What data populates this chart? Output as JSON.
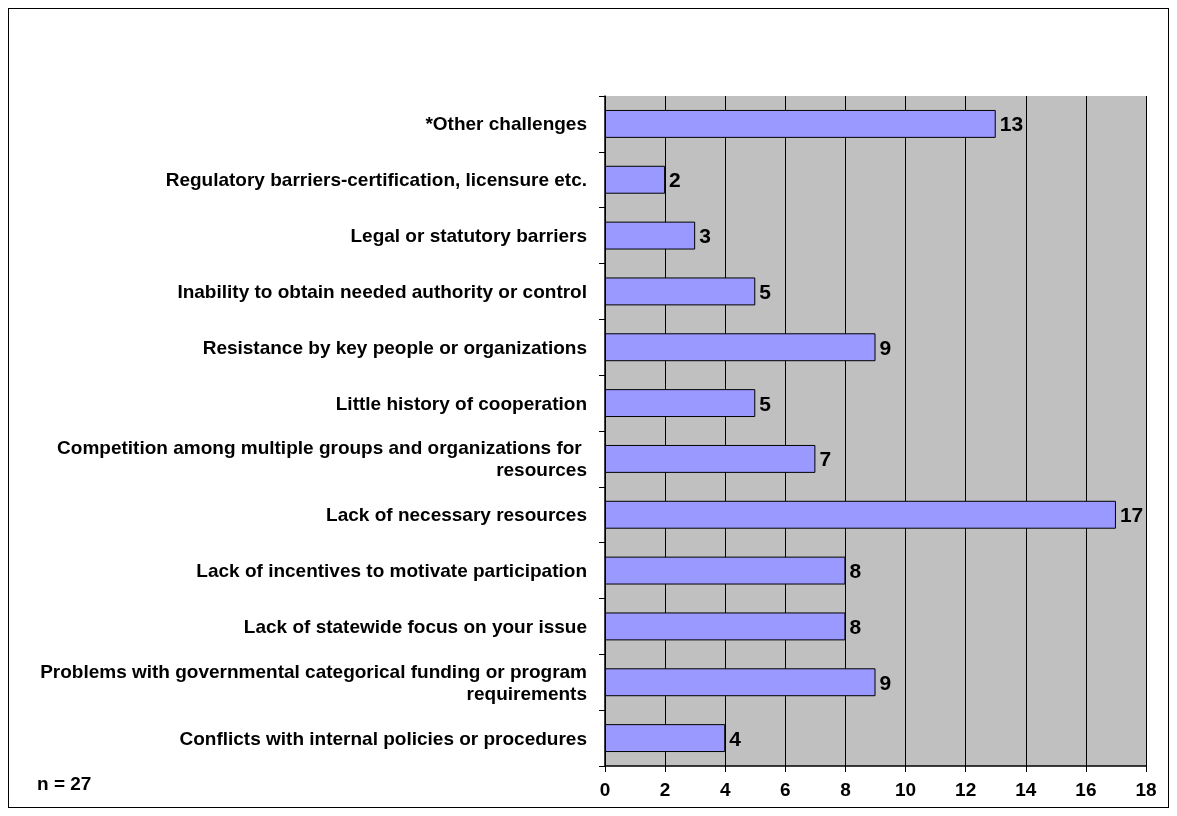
{
  "chart_data": {
    "type": "bar",
    "orientation": "horizontal",
    "categories": [
      "*Other challenges",
      "Regulatory barriers-certification, licensure etc.",
      "Legal or statutory barriers",
      "Inability to obtain needed authority or control",
      "Resistance by key people or organizations",
      "Little history of cooperation",
      "Competition among multiple groups and organizations for resources",
      "Lack of necessary resources",
      "Lack of incentives to motivate participation",
      "Lack of statewide focus on your issue",
      "Problems with governmental categorical funding or program requirements",
      "Conflicts with internal policies or procedures"
    ],
    "values": [
      13,
      2,
      3,
      5,
      9,
      5,
      7,
      17,
      8,
      8,
      9,
      4
    ],
    "color": "#9999ff",
    "xlim": [
      0,
      18
    ],
    "xticks": [
      0,
      2,
      4,
      6,
      8,
      10,
      12,
      14,
      16,
      18
    ],
    "grid": "x",
    "data_labels": true,
    "annotations": [
      "n = 27"
    ]
  }
}
